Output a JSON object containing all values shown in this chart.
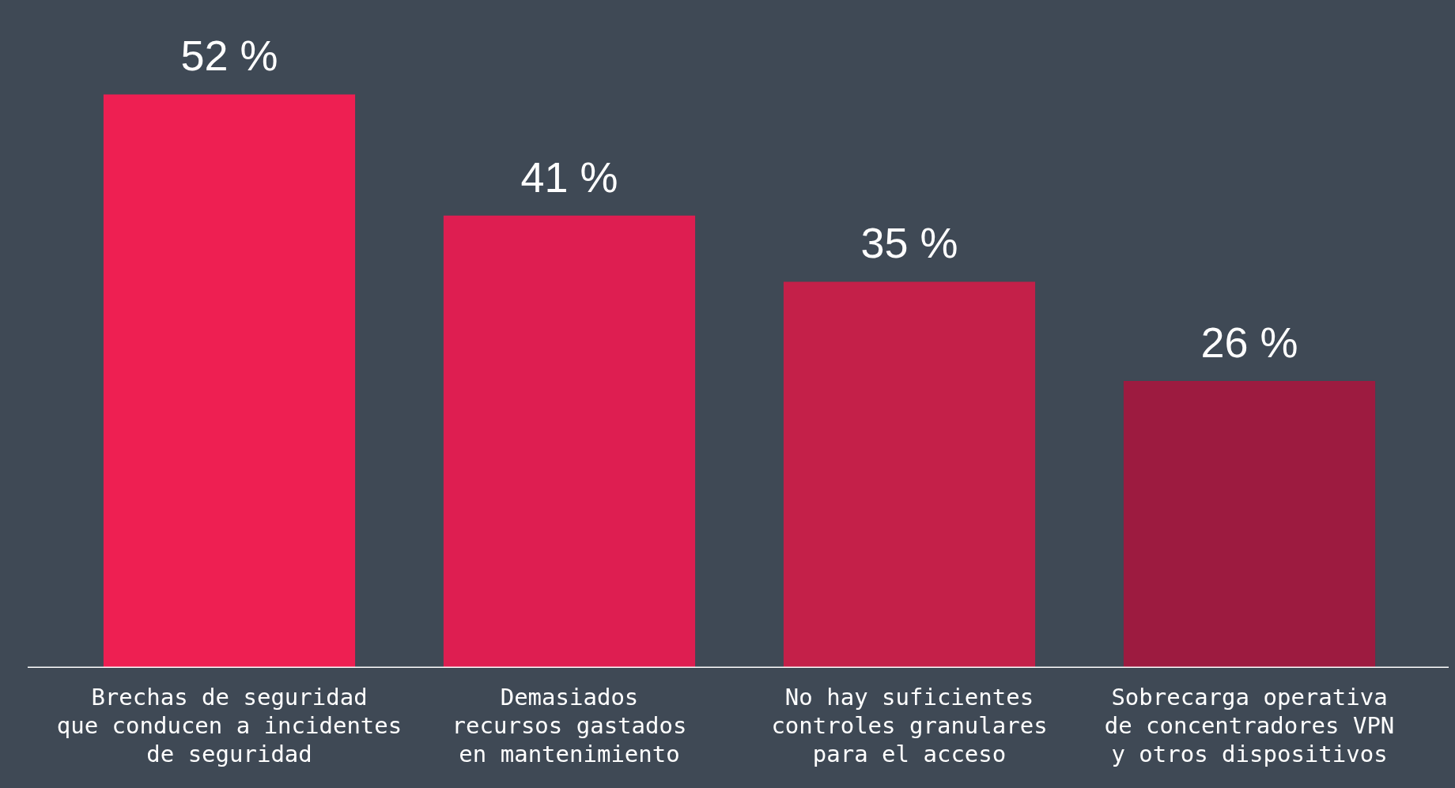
{
  "chart_data": {
    "type": "bar",
    "categories": [
      "Brechas de seguridad\nque conducen a incidentes\nde seguridad",
      "Demasiados\nrecursos gastados\nen mantenimiento",
      "No hay suficientes\ncontroles granulares\npara el acceso",
      "Sobrecarga operativa\nde concentradores VPN\ny otros dispositivos"
    ],
    "values": [
      52,
      41,
      35,
      26
    ],
    "colors": [
      "#ee1f52",
      "#de1e51",
      "#c42049",
      "#9d1b40"
    ],
    "value_labels": [
      "52 %",
      "41 %",
      "35 %",
      "26 %"
    ],
    "grid": false,
    "legend": false
  }
}
